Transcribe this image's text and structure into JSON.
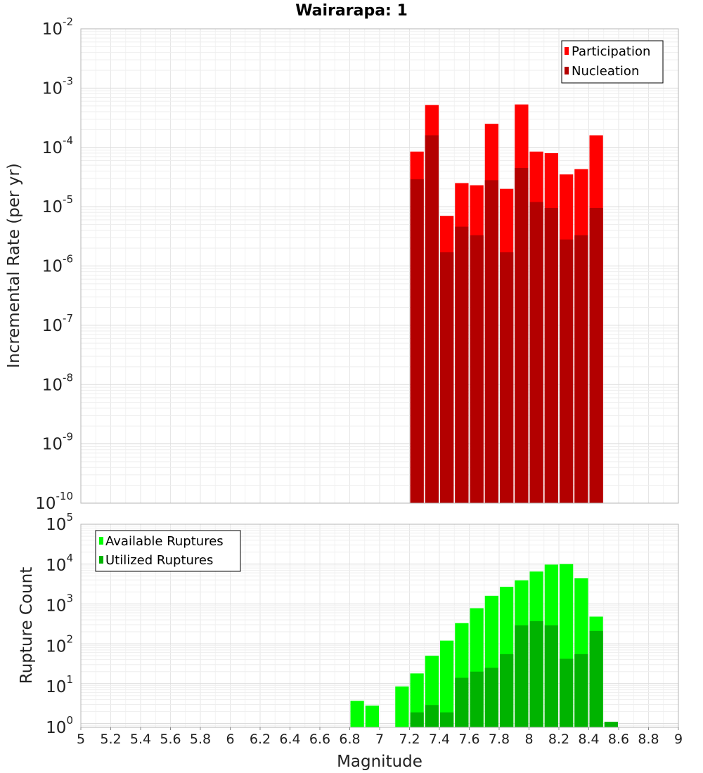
{
  "chart_data": [
    {
      "type": "bar",
      "title": "Wairarapa: 1",
      "xlabel": "",
      "ylabel": "Incremental Rate (per yr)",
      "yscale": "log",
      "ylim": [
        1e-10,
        0.01
      ],
      "xlim": [
        5,
        9
      ],
      "bin_width": 0.1,
      "grid": true,
      "legend_position": "top-right",
      "x": [
        7.25,
        7.35,
        7.45,
        7.55,
        7.65,
        7.75,
        7.85,
        7.95,
        8.05,
        8.15,
        8.25,
        8.35,
        8.45
      ],
      "series": [
        {
          "name": "Participation",
          "color": "#ff0000",
          "values": [
            8.5e-05,
            0.00052,
            7e-06,
            2.5e-05,
            2.3e-05,
            0.00025,
            2e-05,
            0.00053,
            8.5e-05,
            8e-05,
            3.5e-05,
            4.3e-05,
            0.00016
          ]
        },
        {
          "name": "Nucleation",
          "color": "#b30000",
          "values": [
            2.9e-05,
            0.00016,
            1.7e-06,
            4.6e-06,
            3.3e-06,
            2.8e-05,
            1.7e-06,
            4.5e-05,
            1.2e-05,
            9.5e-06,
            2.8e-06,
            3.3e-06,
            9.5e-06
          ]
        }
      ]
    },
    {
      "type": "bar",
      "title": "",
      "xlabel": "Magnitude",
      "ylabel": "Rupture Count",
      "yscale": "log",
      "ylim": [
        0.8,
        100000
      ],
      "xlim": [
        5,
        9
      ],
      "bin_width": 0.1,
      "grid": true,
      "legend_position": "top-left",
      "x_ticks": [
        "5",
        "5.2",
        "5.4",
        "5.6",
        "5.8",
        "6",
        "6.2",
        "6.4",
        "6.6",
        "6.8",
        "7",
        "7.2",
        "7.4",
        "7.6",
        "7.8",
        "8",
        "8.2",
        "8.4",
        "8.6",
        "8.8",
        "9"
      ],
      "series": [
        {
          "name": "Available Ruptures",
          "color": "#00ff00",
          "x": [
            6.85,
            6.95,
            7.15,
            7.25,
            7.35,
            7.45,
            7.55,
            7.65,
            7.75,
            7.85,
            7.95,
            8.05,
            8.15,
            8.25,
            8.35,
            8.45
          ],
          "values": [
            3.7,
            2.8,
            8.5,
            18,
            50,
            120,
            330,
            780,
            1600,
            2700,
            3900,
            6500,
            9700,
            10000,
            4400,
            480
          ]
        },
        {
          "name": "Utilized Ruptures",
          "color": "#00b300",
          "x": [
            7.25,
            7.35,
            7.45,
            7.55,
            7.65,
            7.75,
            7.85,
            7.95,
            8.05,
            8.15,
            8.25,
            8.35,
            8.45,
            8.55
          ],
          "values": [
            1.9,
            2.9,
            1.9,
            14,
            20,
            25,
            55,
            290,
            370,
            290,
            42,
            55,
            210,
            1.1
          ]
        }
      ]
    }
  ]
}
